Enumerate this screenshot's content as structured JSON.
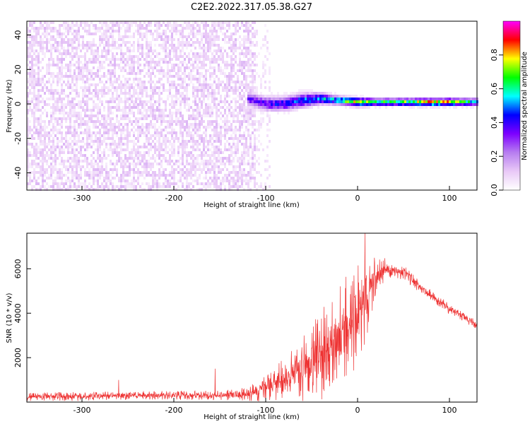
{
  "title": "C2E2.2022.317.05.38.G27",
  "chart_data": [
    {
      "type": "heatmap",
      "xlabel": "Height of straight line (km)",
      "ylabel": "Frequency (Hz)",
      "xlim": [
        -360,
        130
      ],
      "ylim": [
        -50,
        48
      ],
      "xticks": [
        -300,
        -200,
        -100,
        0,
        100
      ],
      "yticks": [
        -40,
        -20,
        0,
        20,
        40
      ],
      "colorbar": {
        "label": "Normalized spectral amplitude",
        "range": [
          0,
          1
        ],
        "ticks": [
          0.0,
          0.2,
          0.4,
          0.6,
          0.8
        ],
        "colormap": [
          "#ffffff",
          "#e9c9f7",
          "#b77ef0",
          "#7d00ff",
          "#0000ff",
          "#00ffff",
          "#00ff00",
          "#ffff00",
          "#ff0000",
          "#ff00ff"
        ]
      },
      "grid": false,
      "noise_region": {
        "x_range": [
          -360,
          -110
        ],
        "freq_range": [
          -50,
          48
        ],
        "amplitude": 0.1
      },
      "signal_track": [
        {
          "x": -120,
          "freq": 3,
          "width": 2.5,
          "amplitude": 0.35
        },
        {
          "x": -100,
          "freq": 0,
          "width": 2.5,
          "amplitude": 0.4
        },
        {
          "x": -80,
          "freq": 0,
          "width": 2.5,
          "amplitude": 0.45
        },
        {
          "x": -60,
          "freq": 2,
          "width": 2.5,
          "amplitude": 0.5
        },
        {
          "x": -40,
          "freq": 3,
          "width": 2,
          "amplitude": 0.55
        },
        {
          "x": -20,
          "freq": 2,
          "width": 1.5,
          "amplitude": 0.6
        },
        {
          "x": 0,
          "freq": 1,
          "width": 1.5,
          "amplitude": 0.85
        },
        {
          "x": 20,
          "freq": 1,
          "width": 1.3,
          "amplitude": 0.7
        },
        {
          "x": 40,
          "freq": 1,
          "width": 1.3,
          "amplitude": 0.7
        },
        {
          "x": 60,
          "freq": 1,
          "width": 1.3,
          "amplitude": 0.75
        },
        {
          "x": 80,
          "freq": 1,
          "width": 1.3,
          "amplitude": 0.9
        },
        {
          "x": 100,
          "freq": 1,
          "width": 1.3,
          "amplitude": 0.85
        },
        {
          "x": 130,
          "freq": 1,
          "width": 1.3,
          "amplitude": 0.6
        }
      ]
    },
    {
      "type": "line",
      "xlabel": "Height of straight line (km)",
      "ylabel": "SNR (10 * v/v)",
      "xlim": [
        -360,
        130
      ],
      "ylim": [
        0,
        7600
      ],
      "xticks": [
        -300,
        -200,
        -100,
        0,
        100
      ],
      "yticks": [
        2000,
        4000,
        6000
      ],
      "grid": false,
      "series": [
        {
          "color": "#ee3333",
          "x": [
            -360,
            -300,
            -250,
            -200,
            -150,
            -120,
            -100,
            -80,
            -60,
            -40,
            -20,
            0,
            10,
            20,
            30,
            40,
            50,
            60,
            70,
            80,
            90,
            100,
            110,
            120,
            130
          ],
          "y": [
            250,
            250,
            300,
            300,
            300,
            350,
            600,
            1000,
            1500,
            2100,
            2900,
            4000,
            4700,
            5600,
            6000,
            6000,
            5800,
            5500,
            5100,
            4800,
            4500,
            4200,
            4000,
            3700,
            3500
          ],
          "spread": [
            200,
            200,
            200,
            200,
            220,
            300,
            600,
            1000,
            1500,
            2000,
            2300,
            2400,
            1800,
            900,
            500,
            400,
            350,
            300,
            280,
            260,
            250,
            240,
            230,
            220,
            200
          ],
          "spikes": [
            {
              "x": 8,
              "y": 7600
            },
            {
              "x": -155,
              "y": 1500
            },
            {
              "x": -260,
              "y": 1000
            }
          ]
        }
      ]
    }
  ]
}
